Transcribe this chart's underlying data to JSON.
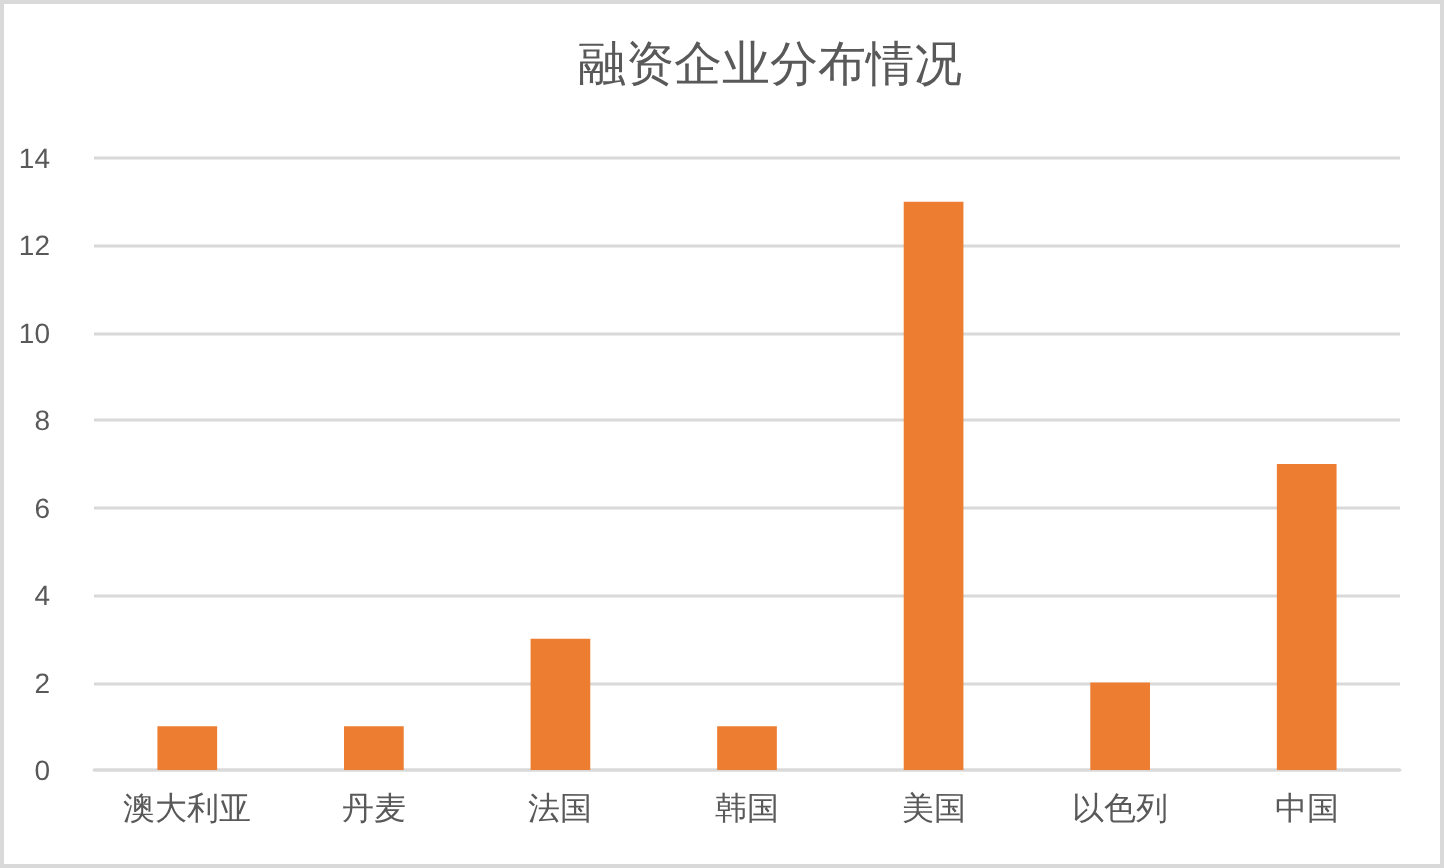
{
  "chart_data": {
    "type": "bar",
    "title": "融资企业分布情况",
    "categories": [
      "澳大利亚",
      "丹麦",
      "法国",
      "韩国",
      "美国",
      "以色列",
      "中国"
    ],
    "values": [
      1,
      1,
      3,
      1,
      13,
      2,
      7
    ],
    "color": "#ed7d31",
    "ylim": [
      0,
      14
    ],
    "yticks": [
      0,
      2,
      4,
      6,
      8,
      10,
      12,
      14
    ],
    "grid": "y"
  }
}
